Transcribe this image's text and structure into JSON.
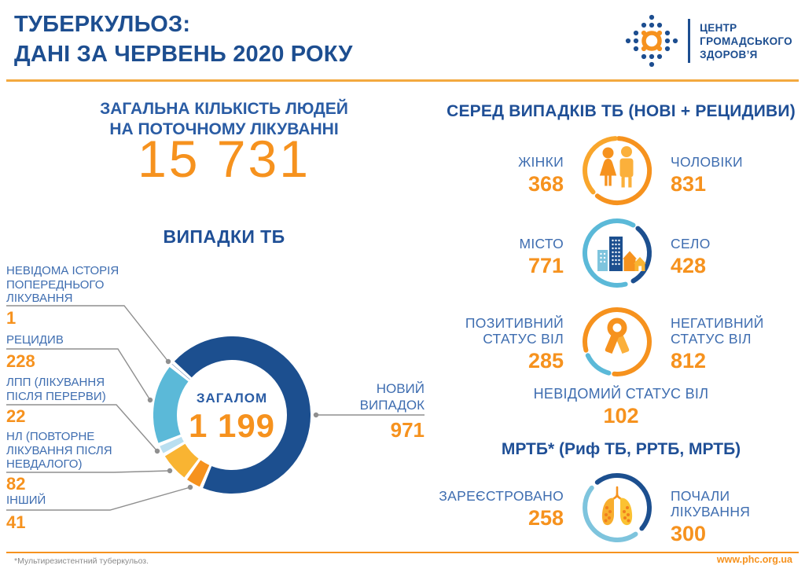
{
  "palette": {
    "navy": "#1D4E90",
    "label_blue": "#3E6DB0",
    "orange": "#F6921E",
    "yellow": "#F9B432",
    "sky_blue": "#5BB9D8",
    "pale_blue": "#BADFF0",
    "dark_blue": "#1C4F8F",
    "connector_gray": "#8F8F8F"
  },
  "header": {
    "title_line1": "ТУБЕРКУЛЬОЗ:",
    "title_line2": "ДАНІ ЗА ЧЕРВЕНЬ 2020 РОКУ",
    "logo_text": "ЦЕНТР\nГРОМАДСЬКОГО\nЗДОРОВ’Я"
  },
  "left": {
    "total_heading": "ЗАГАЛЬНА КІЛЬКІСТЬ ЛЮДЕЙ\nНА ПОТОЧНОМУ ЛІКУВАННІ",
    "total_value": "15 731",
    "cases_heading": "ВИПАДКИ ТБ",
    "donut_center_label": "ЗАГАЛОМ",
    "donut_center_value": "1 199",
    "callouts": [
      {
        "label": "НЕВІДОМА ІСТОРІЯ\nПОПЕРЕДНЬОГО\nЛІКУВАННЯ",
        "value": "1"
      },
      {
        "label": "РЕЦИДИВ",
        "value": "228"
      },
      {
        "label": "ЛПП (ЛІКУВАННЯ\nПІСЛЯ ПЕРЕРВИ)",
        "value": "22"
      },
      {
        "label": "НЛ (ПОВТОРНЕ\nЛІКУВАННЯ ПІСЛЯ\nНЕВДАЛОГО)",
        "value": "82"
      },
      {
        "label": "ІНШИЙ",
        "value": "41"
      }
    ],
    "new_case": {
      "label": "НОВИЙ\nВИПАДОК",
      "value": "971"
    }
  },
  "chart_data": {
    "type": "pie",
    "subtype": "donut",
    "title": "ВИПАДКИ ТБ",
    "center_label": "ЗАГАЛОМ",
    "center_value": 1199,
    "start_angle_deg": 137,
    "direction": "clockwise",
    "gap_deg": 2.6,
    "segments": [
      {
        "label": "НОВИЙ ВИПАДОК",
        "value": 971,
        "color": "#1C4F8F"
      },
      {
        "label": "ІНШИЙ",
        "value": 41,
        "color": "#F6921E"
      },
      {
        "label": "НЛ (ПОВТОРНЕ ЛІКУВАННЯ ПІСЛЯ НЕВДАЛОГО)",
        "value": 82,
        "color": "#F9B432"
      },
      {
        "label": "ЛПП (ЛІКУВАННЯ ПІСЛЯ ПЕРЕРВИ)",
        "value": 22,
        "color": "#BADFF0"
      },
      {
        "label": "РЕЦИДИВ",
        "value": 228,
        "color": "#5BB9D8"
      },
      {
        "label": "НЕВІДОМА ІСТОРІЯ ПОПЕРЕДНЬОГО ЛІКУВАННЯ",
        "value": 1,
        "color": "#1C4F8F"
      }
    ]
  },
  "right": {
    "section_heading": "СЕРЕД ВИПАДКІВ ТБ (НОВІ + РЕЦИДИВИ)",
    "rows": [
      {
        "left_label": "ЖІНКИ",
        "left_value": "368",
        "right_label": "ЧОЛОВІКИ",
        "right_value": "831",
        "icon": "female-male-icon"
      },
      {
        "left_label": "МІСТО",
        "left_value": "771",
        "right_label": "СЕЛО",
        "right_value": "428",
        "icon": "city-village-icon"
      },
      {
        "left_label": "ПОЗИТИВНИЙ\nСТАТУС ВІЛ",
        "left_value": "285",
        "right_label": "НЕГАТИВНИЙ\nСТАТУС ВІЛ",
        "right_value": "812",
        "icon": "hiv-ribbon-icon"
      }
    ],
    "unknown_hiv": {
      "label": "НЕВІДОМИЙ СТАТУС ВІЛ",
      "value": "102"
    },
    "mdr_heading": "МРТБ* (Риф ТБ, РРТБ, МРТБ)",
    "mdr_row": {
      "left_label": "ЗАРЕЄСТРОВАНО",
      "left_value": "258",
      "right_label": "ПОЧАЛИ ЛІКУВАННЯ",
      "right_value": "300",
      "icon": "lungs-icon"
    }
  },
  "footer": {
    "note": "*Мультирезистентний туберкульоз.",
    "website": "www.phc.org.ua"
  }
}
